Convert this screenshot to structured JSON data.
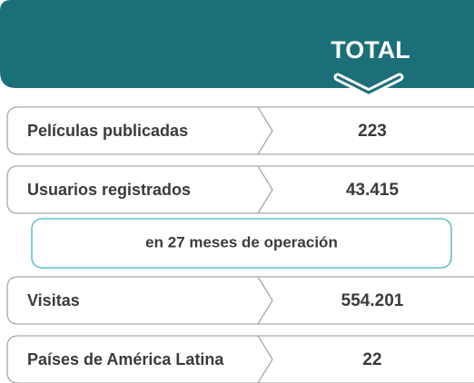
{
  "header": {
    "title": "TOTAL"
  },
  "rows": [
    {
      "label": "Películas publicadas",
      "value": "223"
    },
    {
      "label": "Usuarios registrados",
      "value": "43.415"
    },
    {
      "label": "Visitas",
      "value": "554.201"
    },
    {
      "label": "Países de América Latina",
      "value": "22"
    }
  ],
  "note": "en 27 meses de operación"
}
